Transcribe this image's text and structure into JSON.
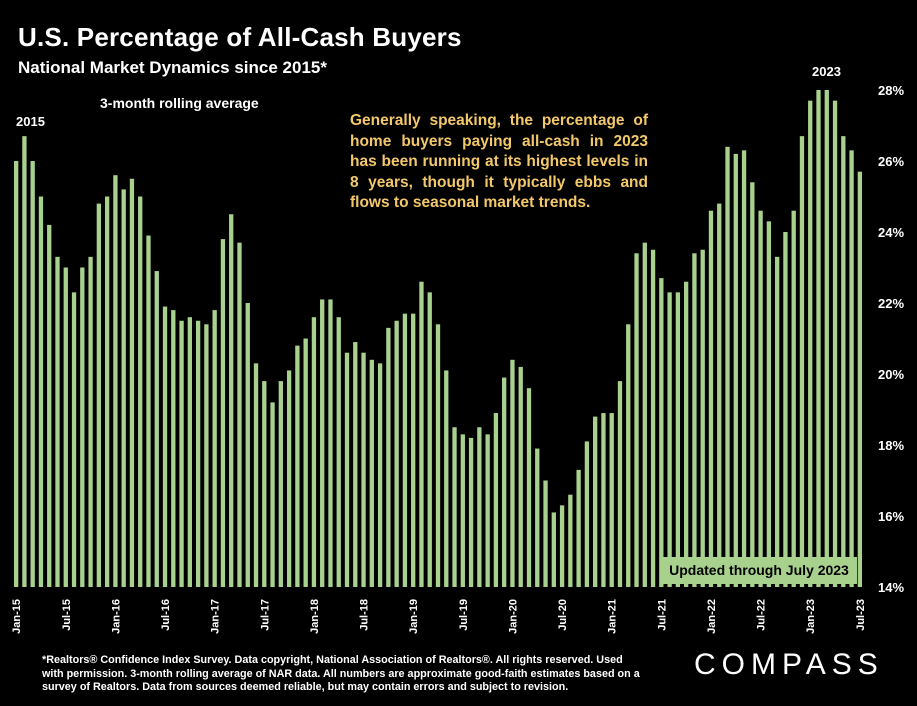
{
  "header": {
    "title": "U.S. Percentage of All-Cash Buyers",
    "subtitle": "National Market Dynamics since 2015*"
  },
  "annotations": {
    "rolling": "3-month rolling average",
    "start_label": "2015",
    "end_label": "2023",
    "note": "Generally speaking, the percentage of home buyers paying all-cash in 2023 has been running at its highest levels in 8 years, though it typically ebbs and flows to seasonal market trends.",
    "updated": "Updated through July 2023"
  },
  "footnote": "*Realtors® Confidence Index Survey. Data copyright, National Association of Realtors®. All rights reserved. Used with permission. 3-month rolling average of NAR data. All numbers are approximate good-faith estimates based on a survey of Realtors. Data from sources deemed reliable, but may contain errors and subject to revision.",
  "logo": "COMPASS",
  "colors": {
    "bar": "#a9d18e",
    "note": "#f3c86a",
    "background": "#000000"
  },
  "chart_data": {
    "type": "bar",
    "ylim": [
      14,
      28
    ],
    "yticks": [
      14,
      16,
      18,
      20,
      22,
      24,
      26,
      28
    ],
    "ytick_labels": [
      "14%",
      "16%",
      "18%",
      "20%",
      "22%",
      "24%",
      "26%",
      "28%"
    ],
    "xtick_labels": [
      "Jan-15",
      "Jul-15",
      "Jan-16",
      "Jul-16",
      "Jan-17",
      "Jul-17",
      "Jan-18",
      "Jul-18",
      "Jan-19",
      "Jul-19",
      "Jan-20",
      "Jul-20",
      "Jan-21",
      "Jul-21",
      "Jan-22",
      "Jul-22",
      "Jan-23",
      "Jul-23"
    ],
    "categories": [
      "Jan-15",
      "Feb-15",
      "Mar-15",
      "Apr-15",
      "May-15",
      "Jun-15",
      "Jul-15",
      "Aug-15",
      "Sep-15",
      "Oct-15",
      "Nov-15",
      "Dec-15",
      "Jan-16",
      "Feb-16",
      "Mar-16",
      "Apr-16",
      "May-16",
      "Jun-16",
      "Jul-16",
      "Aug-16",
      "Sep-16",
      "Oct-16",
      "Nov-16",
      "Dec-16",
      "Jan-17",
      "Feb-17",
      "Mar-17",
      "Apr-17",
      "May-17",
      "Jun-17",
      "Jul-17",
      "Aug-17",
      "Sep-17",
      "Oct-17",
      "Nov-17",
      "Dec-17",
      "Jan-18",
      "Feb-18",
      "Mar-18",
      "Apr-18",
      "May-18",
      "Jun-18",
      "Jul-18",
      "Aug-18",
      "Sep-18",
      "Oct-18",
      "Nov-18",
      "Dec-18",
      "Jan-19",
      "Feb-19",
      "Mar-19",
      "Apr-19",
      "May-19",
      "Jun-19",
      "Jul-19",
      "Aug-19",
      "Sep-19",
      "Oct-19",
      "Nov-19",
      "Dec-19",
      "Jan-20",
      "Feb-20",
      "Mar-20",
      "Apr-20",
      "May-20",
      "Jun-20",
      "Jul-20",
      "Aug-20",
      "Sep-20",
      "Oct-20",
      "Nov-20",
      "Dec-20",
      "Jan-21",
      "Feb-21",
      "Mar-21",
      "Apr-21",
      "May-21",
      "Jun-21",
      "Jul-21",
      "Aug-21",
      "Sep-21",
      "Oct-21",
      "Nov-21",
      "Dec-21",
      "Jan-22",
      "Feb-22",
      "Mar-22",
      "Apr-22",
      "May-22",
      "Jun-22",
      "Jul-22",
      "Aug-22",
      "Sep-22",
      "Oct-22",
      "Nov-22",
      "Dec-22",
      "Jan-23",
      "Feb-23",
      "Mar-23",
      "Apr-23",
      "May-23",
      "Jun-23",
      "Jul-23"
    ],
    "values": [
      26.0,
      26.7,
      26.0,
      25.0,
      24.2,
      23.3,
      23.0,
      22.3,
      23.0,
      23.3,
      24.8,
      25.0,
      25.6,
      25.2,
      25.5,
      25.0,
      23.9,
      22.9,
      21.9,
      21.8,
      21.5,
      21.6,
      21.5,
      21.4,
      21.8,
      23.8,
      24.5,
      23.7,
      22.0,
      20.3,
      19.8,
      19.2,
      19.8,
      20.1,
      20.8,
      21.0,
      21.6,
      22.1,
      22.1,
      21.6,
      20.6,
      20.9,
      20.6,
      20.4,
      20.3,
      21.3,
      21.5,
      21.7,
      21.7,
      22.6,
      22.3,
      21.4,
      20.1,
      18.5,
      18.3,
      18.2,
      18.5,
      18.3,
      18.9,
      19.9,
      20.4,
      20.2,
      19.6,
      17.9,
      17.0,
      16.1,
      16.3,
      16.6,
      17.3,
      18.1,
      18.8,
      18.9,
      18.9,
      19.8,
      21.4,
      23.4,
      23.7,
      23.5,
      22.7,
      22.3,
      22.3,
      22.6,
      23.4,
      23.5,
      24.6,
      24.8,
      26.4,
      26.2,
      26.3,
      25.4,
      24.6,
      24.3,
      23.3,
      24.0,
      24.6,
      26.7,
      27.7,
      28.1,
      28.1,
      27.7,
      26.7,
      26.3,
      25.7
    ]
  }
}
